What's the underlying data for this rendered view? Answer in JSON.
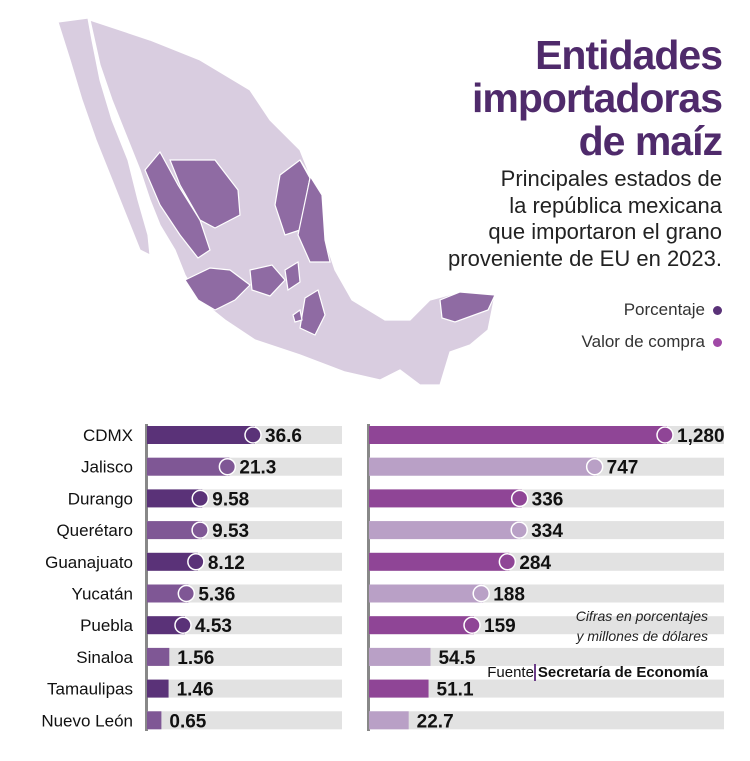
{
  "title": [
    "Entidades",
    "importadoras",
    "de maíz"
  ],
  "subtitle": [
    "Principales estados de",
    "la república mexicana",
    "que importaron el grano",
    "proveniente de EU en 2023."
  ],
  "legend": {
    "percent": "Porcentaje",
    "value": "Valor de compra"
  },
  "colors": {
    "percent_dark": "#5a3278",
    "percent_light": "#7f5795",
    "value_dark": "#8f4596",
    "value_light": "#b9a0c6",
    "track": "#e2e2e2",
    "map_base": "#d9cde0",
    "map_highlight": "#8f6ba3",
    "title": "#4f2a6b"
  },
  "note": [
    "Cifras en porcentajes",
    "y millones de dólares"
  ],
  "source": {
    "label": "Fuente",
    "name": "Secretaría de Economía"
  },
  "chart_data": {
    "type": "bar",
    "categories": [
      "CDMX",
      "Jalisco",
      "Durango",
      "Querétaro",
      "Guanajuato",
      "Yucatán",
      "Puebla",
      "Sinaloa",
      "Tamaulipas",
      "Nuevo León"
    ],
    "series": [
      {
        "name": "Porcentaje",
        "values": [
          36.6,
          21.3,
          9.58,
          9.53,
          8.12,
          5.36,
          4.53,
          1.56,
          1.46,
          0.65
        ],
        "labels": [
          "36.6",
          "21.3",
          "9.58",
          "9.53",
          "8.12",
          "5.36",
          "4.53",
          "1.56",
          "1.46",
          "0.65"
        ]
      },
      {
        "name": "Valor de compra",
        "values": [
          1280,
          747,
          336,
          334,
          284,
          188,
          159,
          54.5,
          51.1,
          22.7
        ],
        "labels": [
          "1,280",
          "747",
          "336",
          "334",
          "284",
          "188",
          "159",
          "54.5",
          "51.1",
          "22.7"
        ]
      }
    ]
  }
}
